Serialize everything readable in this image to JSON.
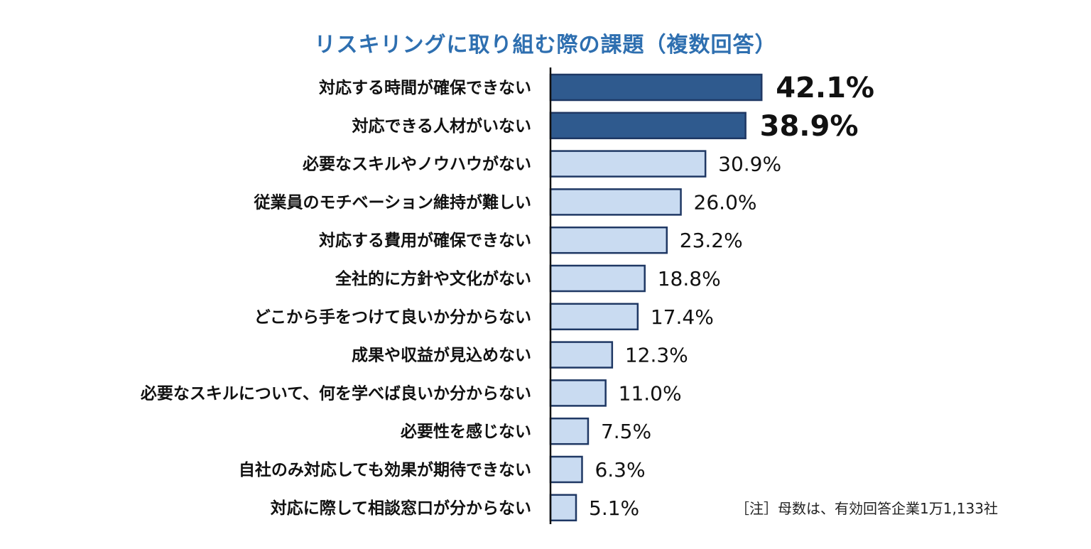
{
  "chart_data": {
    "type": "bar",
    "orientation": "horizontal",
    "title": "リスキリングに取り組む際の課題（複数回答）",
    "categories": [
      "対応する時間が確保できない",
      "対応できる人材がいない",
      "必要なスキルやノウハウがない",
      "従業員のモチベーション維持が難しい",
      "対応する費用が確保できない",
      "全社的に方針や文化がない",
      "どこから手をつけて良いか分からない",
      "成果や収益が見込めない",
      "必要なスキルについて、何を学べば良いか分からない",
      "必要性を感じない",
      "自社のみ対応しても効果が期待できない",
      "対応に際して相談窓口が分からない"
    ],
    "values": [
      42.1,
      38.9,
      30.9,
      26.0,
      23.2,
      18.8,
      17.4,
      12.3,
      11.0,
      7.5,
      6.3,
      5.1
    ],
    "value_labels": [
      "42.1%",
      "38.9%",
      "30.9%",
      "26.0%",
      "23.2%",
      "18.8%",
      "17.4%",
      "12.3%",
      "11.0%",
      "7.5%",
      "6.3%",
      "5.1%"
    ],
    "highlighted_count": 2,
    "colors": {
      "highlight_fill": "#2f5a8e",
      "normal_fill": "#c9dbf1",
      "bar_stroke": "#1f3864",
      "axis": "#111111",
      "title": "#2e6fb0"
    },
    "xlabel": "",
    "ylabel": "",
    "grid": false,
    "note": "［注］母数は、有効回答企業1万1,133社"
  }
}
